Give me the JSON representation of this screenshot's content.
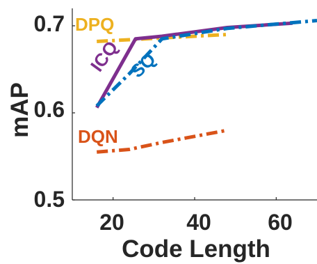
{
  "chart_data": {
    "type": "line",
    "xlabel": "Code Length",
    "ylabel": "mAP",
    "xlim": [
      10,
      70
    ],
    "ylim": [
      0.5,
      0.72
    ],
    "xticks": [
      "20",
      "40",
      "60"
    ],
    "yticks": [
      "0.5",
      "0.6",
      "0.7"
    ],
    "grid": false,
    "legend": "inline labels next to each line",
    "series": [
      {
        "name": "DPQ",
        "color": "#EDB120",
        "style": "dash-dot",
        "x": [
          16,
          24,
          32,
          48
        ],
        "y": [
          0.682,
          0.684,
          0.686,
          0.69
        ]
      },
      {
        "name": "ICQ",
        "color": "#7E2F8E",
        "style": "solid",
        "x": [
          16,
          25.5,
          32,
          48,
          64
        ],
        "y": [
          0.606,
          0.685,
          0.688,
          0.698,
          0.703
        ]
      },
      {
        "name": "SQ",
        "color": "#0072BD",
        "style": "dash-dot",
        "x": [
          16,
          24,
          32,
          48,
          70
        ],
        "y": [
          0.608,
          0.645,
          0.685,
          0.697,
          0.706
        ]
      },
      {
        "name": "DQN",
        "color": "#D95319",
        "style": "dash-dot",
        "x": [
          16,
          24,
          32,
          48
        ],
        "y": [
          0.555,
          0.558,
          0.566,
          0.58
        ]
      }
    ]
  }
}
